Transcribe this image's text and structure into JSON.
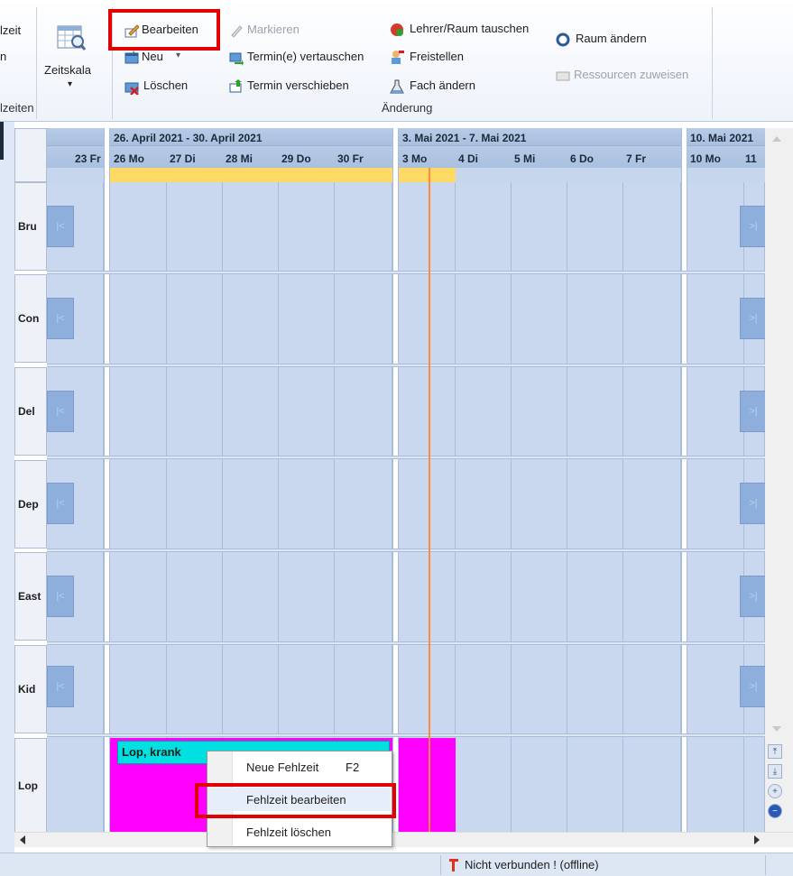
{
  "ribbon": {
    "left_partial": {
      "top_text": "lzeit",
      "mid_text": "n",
      "group_label": "lzeiten"
    },
    "zeitskala": {
      "label": "Zeitskala",
      "arrow": "▾"
    },
    "bearbeiten": "Bearbeiten",
    "neu": "Neu",
    "neu_arrow": "▾",
    "loeschen": "Löschen",
    "markieren": "Markieren",
    "termin_vertauschen": "Termin(e) vertauschen",
    "termin_verschieben": "Termin verschieben",
    "lehrer_raum_tauschen": "Lehrer/Raum tauschen",
    "freistellen": "Freistellen",
    "fach_aendern": "Fach ändern",
    "raum_aendern": "Raum ändern",
    "ressourcen_zuweisen": "Ressourcen zuweisen",
    "group_label": "Änderung"
  },
  "calendar": {
    "weeks": [
      "26. April 2021 - 30. April 2021",
      "3. Mai 2021 - 7. Mai 2021",
      "10. Mai 2021"
    ],
    "days_prev": "23 Fr",
    "days_w1": [
      "26 Mo",
      "27 Di",
      "28 Mi",
      "29 Do",
      "30 Fr"
    ],
    "days_w2": [
      "3 Mo",
      "4 Di",
      "5 Mi",
      "6 Do",
      "7 Fr"
    ],
    "days_w3": [
      "10 Mo",
      "11"
    ],
    "rows": [
      "Bru",
      "Con",
      "Del",
      "Dep",
      "East",
      "Kid",
      "Lop"
    ],
    "nav_prev": "|<",
    "nav_next": ">|",
    "absence_label": "Lop, krank"
  },
  "context_menu": {
    "items": [
      {
        "label": "Neue Fehlzeit",
        "shortcut": "F2"
      },
      {
        "label": "Fehlzeit bearbeiten",
        "shortcut": ""
      },
      {
        "label": "Fehlzeit löschen",
        "shortcut": ""
      }
    ]
  },
  "status": {
    "connection": "Nicht verbunden ! (offline)"
  },
  "colors": {
    "highlight": "#e30000",
    "absence": "#ff00ff",
    "absence_label_bg": "#00e0e0",
    "today_line": "#ff8a3c",
    "week_bar": "#ffd966"
  }
}
